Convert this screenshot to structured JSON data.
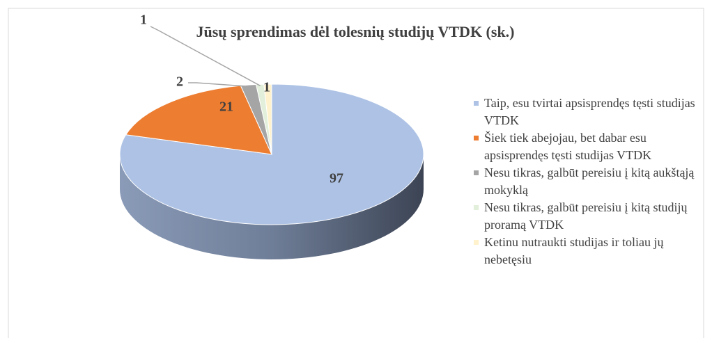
{
  "chart_data": {
    "type": "pie3d",
    "title": "Jūsų sprendimas dėl tolesnių studijų VTDK (sk.)",
    "categories": [
      "Taip, esu tvirtai apsisprendęs tęsti studijas VTDK",
      "Šiek tiek abejojau, bet dabar esu apsisprendęs tęsti studijas VTDK",
      "Nesu tikras, galbūt pereisiu į kitą aukštąją mokyklą",
      "Nesu tikras, galbūt pereisiu į kitą studijų proramą VTDK",
      "Ketinu nutraukti studijas ir toliau jų nebetęsiu"
    ],
    "values": [
      97,
      21,
      2,
      1,
      1
    ],
    "colors": [
      "#adc2e5",
      "#ed7d31",
      "#a5a5a5",
      "#e2efda",
      "#fff2cc"
    ],
    "legend": "right"
  }
}
